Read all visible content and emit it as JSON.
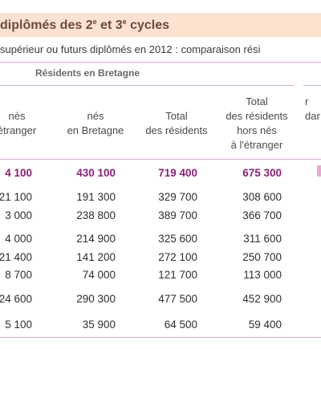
{
  "title": {
    "text": "diplômés des 2",
    "sup1": "e",
    "mid": " et 3",
    "sup2": "e",
    "end": " cycles"
  },
  "subtitle": "supérieur ou futurs diplômés en 2012 : comparaison rési",
  "group_header": "Résidents en Bretagne",
  "columns": [
    {
      "lines": [
        "nés",
        "étranger"
      ]
    },
    {
      "lines": [
        "nés",
        "en Bretagne"
      ]
    },
    {
      "lines": [
        "Total",
        "des résidents"
      ]
    },
    {
      "lines": [
        "Total",
        "des résidents",
        "hors nés",
        "à l'étranger"
      ]
    },
    {
      "lines": [
        "r",
        "dar"
      ]
    }
  ],
  "rows": [
    {
      "type": "total",
      "values": [
        "4 100",
        "430 100",
        "719 400",
        "675 300"
      ]
    },
    {
      "type": "data",
      "values": [
        "21 100",
        "191 300",
        "329 700",
        "308 600"
      ]
    },
    {
      "type": "data",
      "values": [
        "3 000",
        "238 800",
        "389 700",
        "366 700"
      ]
    },
    {
      "type": "data",
      "values": [
        "4 000",
        "214 900",
        "325 600",
        "311 600"
      ]
    },
    {
      "type": "data",
      "values": [
        "21 400",
        "141 200",
        "272 100",
        "250 700"
      ]
    },
    {
      "type": "data",
      "values": [
        "8 700",
        "74 000",
        "121 700",
        "113 000"
      ]
    },
    {
      "type": "data",
      "values": [
        "24 600",
        "290 300",
        "477 500",
        "452 900"
      ]
    },
    {
      "type": "data",
      "values": [
        "5 100",
        "35 900",
        "64 500",
        "59 400"
      ]
    }
  ],
  "colors": {
    "title_band": "#fbe3cf",
    "title_text": "#6a4a40",
    "rule": "#e8a6d0",
    "total_text": "#8e1e7a"
  }
}
